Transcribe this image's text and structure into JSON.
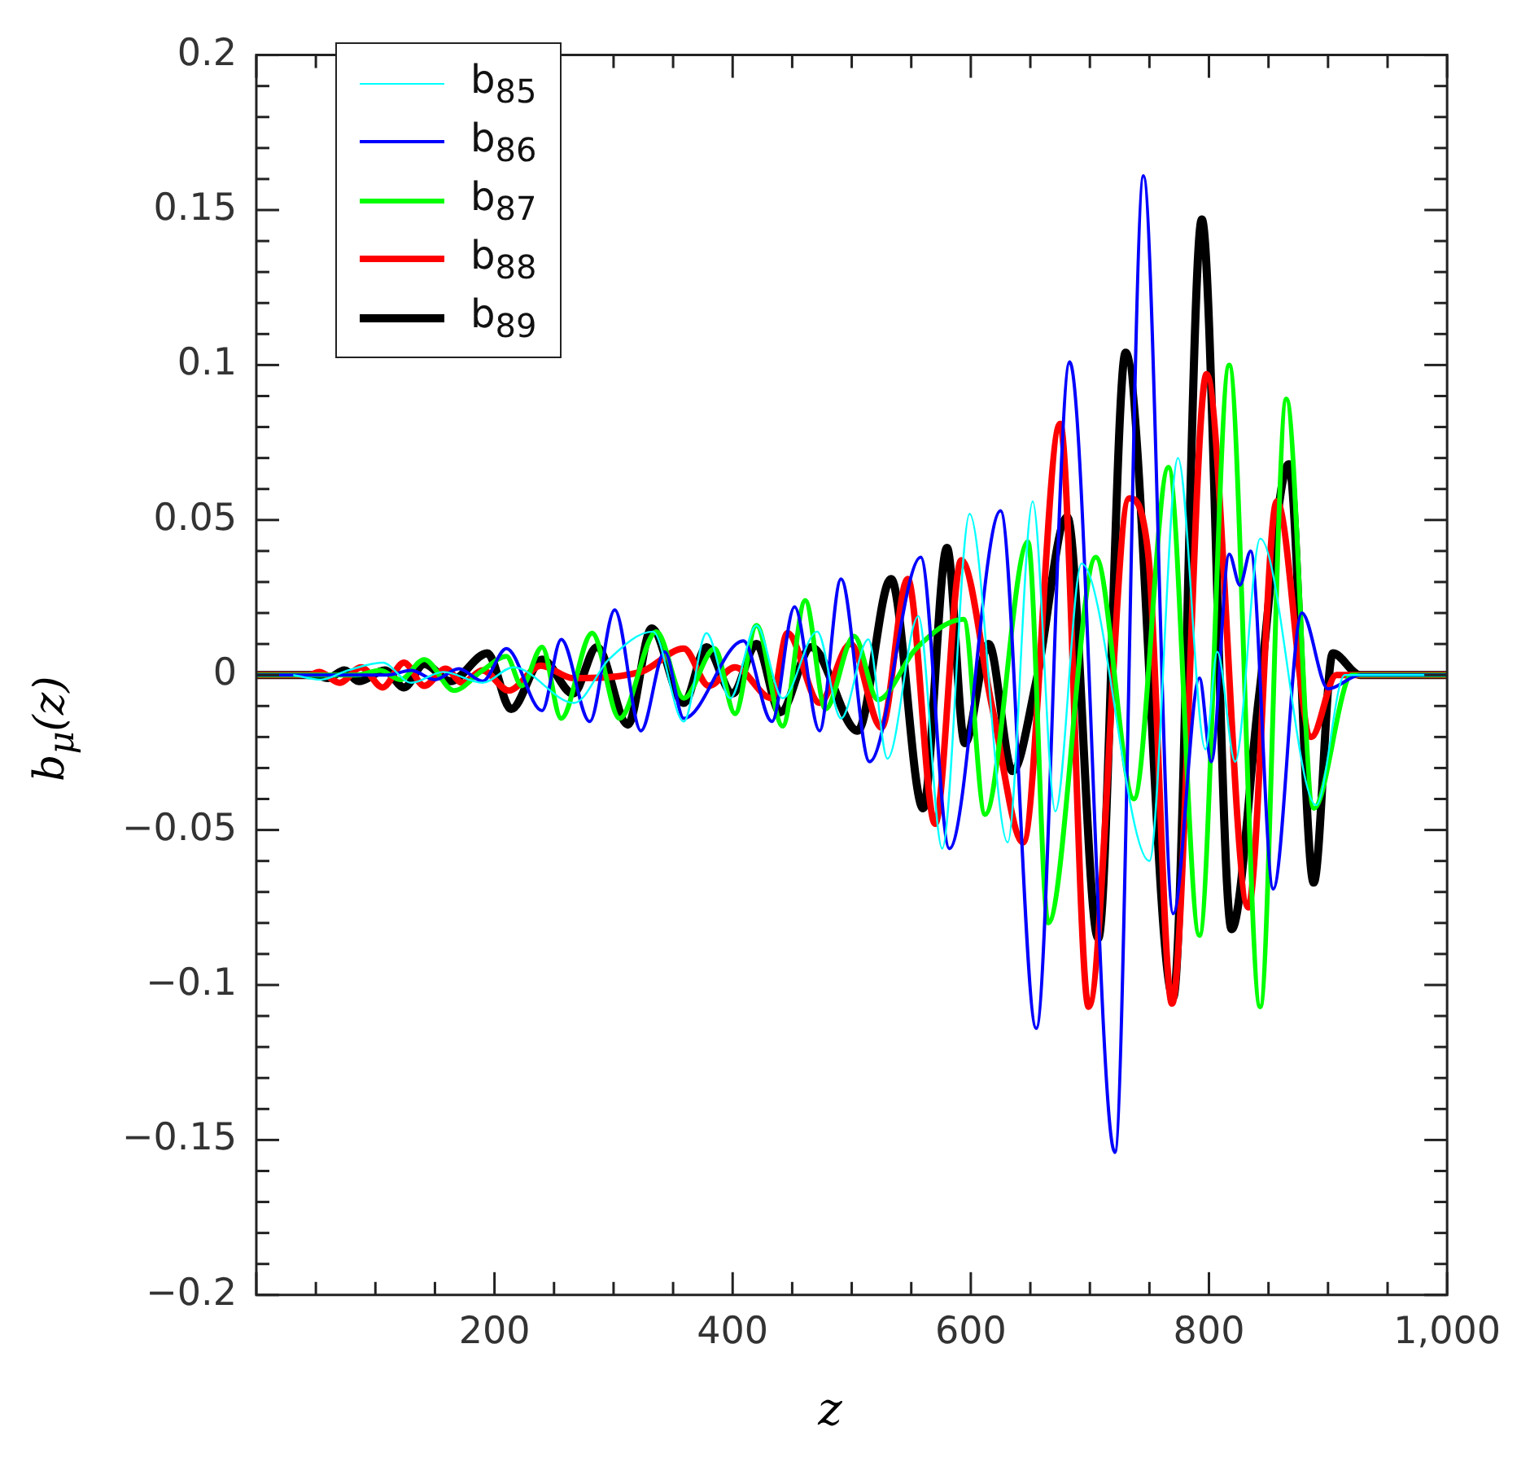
{
  "chart_data": {
    "type": "line",
    "xlabel": "z",
    "ylabel": "b$_{μ}$(z)",
    "xlim": [
      0,
      1000
    ],
    "xticks": [
      200,
      400,
      600,
      800,
      {
        "value": 1000,
        "label": "1,000"
      }
    ],
    "ylim": [
      -0.2,
      0.2
    ],
    "yticks": [
      {
        "value": -0.2,
        "label": "−0.2"
      },
      {
        "value": -0.15,
        "label": "−0.15"
      },
      {
        "value": -0.1,
        "label": "−0.1"
      },
      {
        "value": -0.05,
        "label": "−0.05"
      },
      0,
      0.05,
      0.1,
      0.15,
      0.2
    ],
    "grid": false,
    "legend": "top left",
    "marker": "none",
    "line_style": "solid",
    "series": [
      {
        "name": "b$_{85}$",
        "color": "#00ffff",
        "x": [
          31,
          54,
          77,
          106,
          130,
          157,
          190,
          216,
          267,
          296,
          333,
          359,
          378,
          398,
          420,
          442,
          471,
          491,
          514,
          530,
          556,
          576,
          599,
          631,
          652,
          671,
          693,
          750,
          774,
          797,
          807,
          822,
          843,
          890,
          914,
          1000
        ],
        "values": [
          0,
          -0.0015,
          0.0015,
          0.004,
          -0.0025,
          0.001,
          -0.0025,
          0.0025,
          -0.009,
          0.005,
          0.014,
          -0.015,
          0.0135,
          -0.0075,
          0.016,
          -0.0075,
          0.014,
          -0.014,
          0.0115,
          -0.027,
          0.019,
          -0.056,
          0.052,
          -0.054,
          0.056,
          -0.044,
          0.036,
          -0.06,
          0.07,
          -0.024,
          0.0075,
          -0.028,
          0.044,
          -0.042,
          0,
          0
        ]
      },
      {
        "name": "b$_{86}$",
        "color": "#0000ff",
        "x": [
          0,
          110,
          130,
          150,
          170,
          190,
          210,
          240,
          256,
          280,
          301,
          323,
          343,
          359,
          409,
          433,
          452,
          473,
          491,
          515,
          558,
          582,
          625,
          655,
          683,
          721,
          745,
          770,
          792,
          802,
          817,
          826,
          835,
          854,
          878,
          900,
          927,
          1000
        ],
        "values": [
          0,
          0,
          0.0015,
          -0.0015,
          0.002,
          -0.002,
          0.0085,
          -0.0115,
          0.0115,
          -0.015,
          0.021,
          -0.018,
          0.0075,
          -0.014,
          0.011,
          -0.015,
          0.022,
          -0.018,
          0.031,
          -0.028,
          0.038,
          -0.056,
          0.053,
          -0.114,
          0.101,
          -0.154,
          0.161,
          -0.077,
          -0.001,
          -0.028,
          0.039,
          0.029,
          0.04,
          -0.069,
          0.02,
          -0.0045,
          0,
          0
        ]
      },
      {
        "name": "b$_{87}$",
        "color": "#00ff00",
        "x": [
          0,
          84,
          104,
          121,
          141,
          166,
          190,
          210,
          223,
          240,
          256,
          282,
          305,
          336,
          359,
          385,
          402,
          420,
          442,
          461,
          478,
          502,
          522,
          554,
          594,
          612,
          648,
          665,
          705,
          737,
          766,
          792,
          817,
          843,
          865,
          888,
          920,
          1000
        ],
        "values": [
          0,
          0,
          0.0015,
          -0.0015,
          0.005,
          -0.005,
          0.0015,
          0.006,
          -0.0035,
          0.009,
          -0.014,
          0.0135,
          -0.014,
          0.014,
          -0.0075,
          0.0085,
          -0.0125,
          0.016,
          -0.0165,
          0.024,
          -0.011,
          0.0125,
          -0.008,
          0.0085,
          0.018,
          -0.045,
          0.043,
          -0.08,
          0.038,
          -0.04,
          0.067,
          -0.084,
          0.1,
          -0.107,
          0.089,
          -0.043,
          0,
          0
        ]
      },
      {
        "name": "b$_{88}$",
        "color": "#ff0000",
        "x": [
          0,
          44,
          53,
          70,
          88,
          106,
          124,
          141,
          159,
          173,
          190,
          212,
          239,
          266,
          323,
          359,
          380,
          402,
          433,
          446,
          473,
          499,
          525,
          547,
          570,
          592,
          618,
          644,
          675,
          699,
          733,
          749,
          769,
          798,
          833,
          857,
          886,
          907,
          1000
        ],
        "values": [
          0,
          0,
          0.001,
          -0.0025,
          0.0025,
          -0.004,
          0.004,
          -0.0035,
          0.002,
          -0.0025,
          0.0015,
          -0.005,
          0.003,
          -0.001,
          0.001,
          0.0085,
          -0.0035,
          0.0025,
          -0.0075,
          0.0135,
          -0.009,
          0.01,
          -0.017,
          0.031,
          -0.048,
          0.037,
          -0.0105,
          -0.054,
          0.081,
          -0.107,
          0.057,
          0.039,
          -0.106,
          0.097,
          -0.075,
          0.056,
          -0.02,
          0,
          0
        ]
      },
      {
        "name": "b$_{89}$",
        "color": "#000000",
        "x": [
          0,
          50,
          60,
          74,
          86,
          108,
          124,
          141,
          163,
          194,
          214,
          240,
          266,
          286,
          312,
          332,
          359,
          378,
          400,
          420,
          440,
          466,
          505,
          533,
          560,
          580,
          595,
          615,
          635,
          655,
          681,
          707,
          730,
          770,
          794,
          819,
          842,
          867,
          888,
          904,
          927,
          1000
        ],
        "values": [
          0,
          0,
          -0.001,
          0.0015,
          -0.002,
          0.0015,
          -0.004,
          0.0035,
          -0.002,
          0.007,
          -0.011,
          0.005,
          -0.006,
          0.009,
          -0.016,
          0.015,
          -0.009,
          0.009,
          -0.006,
          0.01,
          -0.012,
          0.009,
          -0.018,
          0.031,
          -0.043,
          0.041,
          -0.022,
          0.01,
          -0.031,
          -0.002,
          0.051,
          -0.085,
          0.104,
          -0.104,
          0.147,
          -0.082,
          -0.007,
          0.068,
          -0.067,
          0.007,
          0,
          0
        ]
      }
    ]
  }
}
